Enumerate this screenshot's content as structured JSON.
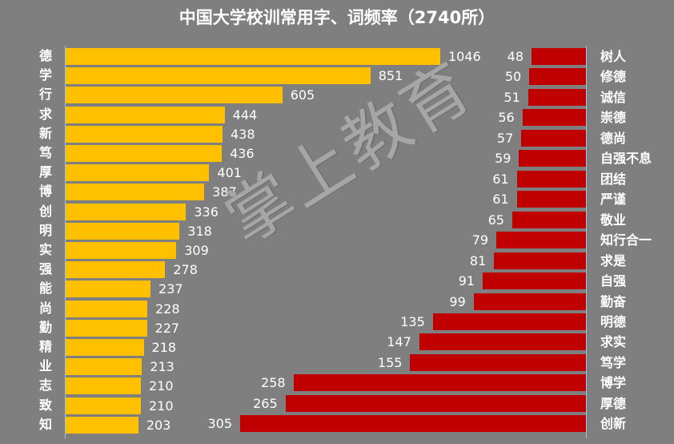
{
  "chart_data": [
    {
      "type": "bar",
      "orientation": "horizontal",
      "title": "中国大学校训常用字、词频率（2740所）",
      "series_name": "常用字",
      "color": "#ffc000",
      "categories": [
        "德",
        "学",
        "行",
        "求",
        "新",
        "笃",
        "厚",
        "博",
        "创",
        "明",
        "实",
        "强",
        "能",
        "尚",
        "勤",
        "精",
        "业",
        "志",
        "致",
        "知"
      ],
      "values": [
        1046,
        851,
        605,
        444,
        438,
        436,
        401,
        387,
        336,
        318,
        309,
        278,
        237,
        228,
        227,
        218,
        213,
        210,
        210,
        203
      ],
      "data_labels": true,
      "grid": false,
      "legend": false
    },
    {
      "type": "bar",
      "orientation": "horizontal-reversed",
      "title": "中国大学校训常用字、词频率（2740所）",
      "series_name": "常用词",
      "color": "#c00000",
      "categories": [
        "树人",
        "修德",
        "诚信",
        "崇德",
        "德尚",
        "自强不息",
        "团结",
        "严谨",
        "敬业",
        "知行合一",
        "求是",
        "自强",
        "勤奋",
        "明德",
        "求实",
        "笃学",
        "博学",
        "厚德",
        "创新"
      ],
      "values": [
        48,
        50,
        51,
        56,
        57,
        59,
        61,
        61,
        65,
        79,
        81,
        91,
        99,
        135,
        147,
        155,
        258,
        265,
        305
      ],
      "data_labels": true,
      "grid": false,
      "legend": false
    }
  ],
  "title": "中国大学校训常用字、词频率（2740所）",
  "watermark": "掌上教育",
  "colors": {
    "background": "#7f7f7f",
    "left_bar": "#ffc000",
    "right_bar": "#c00000",
    "text": "#ffffff"
  }
}
